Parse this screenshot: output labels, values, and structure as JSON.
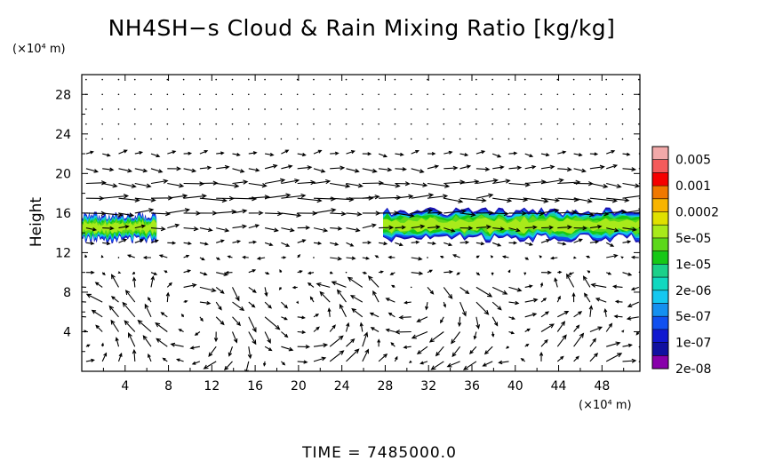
{
  "chart_data": {
    "type": "contour_with_vectors",
    "title": "NH4SH−s Cloud & Rain Mixing Ratio [kg/kg]",
    "y_unit": "(×10⁴ m)",
    "x_unit": "(×10⁴ m)",
    "ylabel": "Height",
    "xlabel": "",
    "xlim": [
      0,
      51.5
    ],
    "ylim": [
      0,
      30
    ],
    "x_ticks": [
      "4",
      "8",
      "12",
      "16",
      "20",
      "24",
      "28",
      "32",
      "36",
      "40",
      "44",
      "48"
    ],
    "y_ticks": [
      "4",
      "8",
      "12",
      "16",
      "20",
      "24",
      "28"
    ],
    "colorbar": {
      "labels": [
        "0.005",
        "0.001",
        "0.0002",
        "5e-05",
        "1e-05",
        "2e-06",
        "5e-07",
        "1e-07",
        "2e-08"
      ],
      "colors": [
        "#f2a9a9",
        "#f45b5b",
        "#f50000",
        "#f07800",
        "#f8b400",
        "#e0e000",
        "#a8ea1a",
        "#5cd81a",
        "#16c816",
        "#1bd08a",
        "#10d8c0",
        "#14c8f0",
        "#1490f0",
        "#1050f0",
        "#1018d0",
        "#1010a0",
        "#8800aa"
      ]
    },
    "cloud_layers": [
      {
        "x_start": 0.0,
        "x_end": 6.9,
        "y_bottom": 12.9,
        "y_top": 16.2
      },
      {
        "x_start": 27.8,
        "x_end": 51.5,
        "y_bottom": 13.0,
        "y_top": 16.6
      }
    ],
    "wind_field": "vector arrows over the full domain; strong eastward flow near heights 14–22, circulation cells below 10",
    "time_label": "TIME  =  7485000.0"
  }
}
